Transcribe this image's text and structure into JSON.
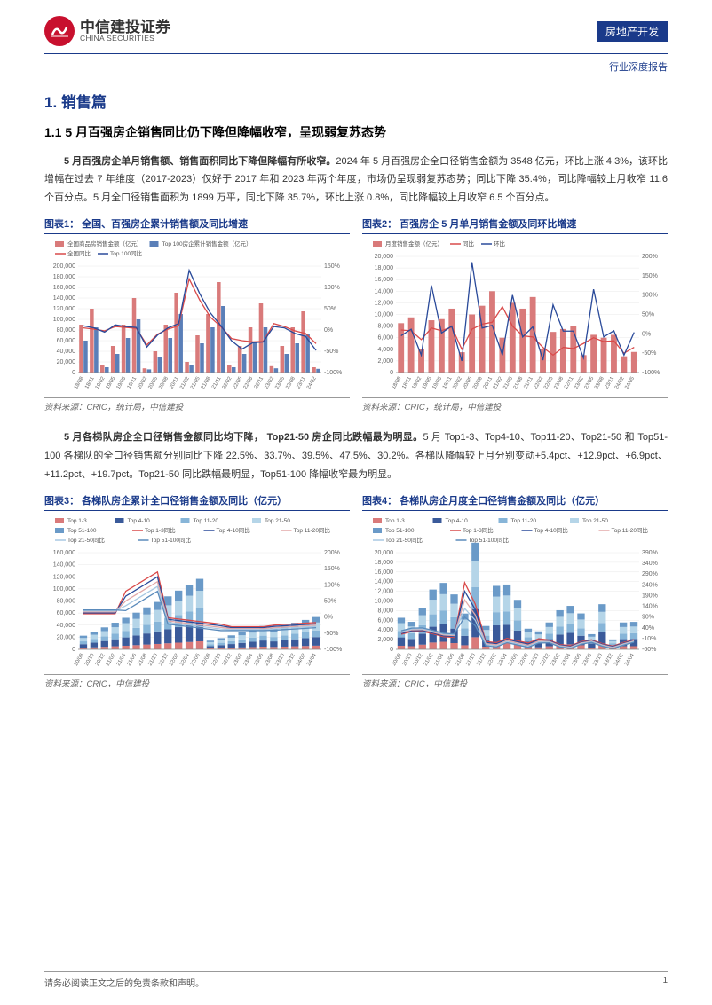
{
  "header": {
    "logo_cn": "中信建投证券",
    "logo_en": "CHINA SECURITIES",
    "tag": "房地产开发",
    "subheader": "行业深度报告"
  },
  "section1": {
    "title": "1. 销售篇",
    "subtitle": "1.1 5 月百强房企销售同比仍下降但降幅收窄，呈现弱复苏态势",
    "para1_bold": "5 月百强房企单月销售额、销售面积同比下降但降幅有所收窄。",
    "para1_rest": "2024 年 5 月百强房企全口径销售金额为 3548 亿元，环比上涨 4.3%，该环比增幅在过去 7 年维度（2017-2023）仅好于 2017 年和 2023 年两个年度，市场仍呈现弱复苏态势；同比下降 35.4%，同比降幅较上月收窄 11.6 个百分点。5 月全口径销售面积为 1899 万平，同比下降 35.7%，环比上涨 0.8%，同比降幅较上月收窄 6.5 个百分点。",
    "para2_bold": "5 月各梯队房企全口径销售金额同比均下降， Top21-50 房企同比跌幅最为明显。",
    "para2_rest": "5 月 Top1-3、Top4-10、Top11-20、Top21-50 和 Top51-100 各梯队的全口径销售额分别同比下降 22.5%、33.7%、39.5%、47.5%、30.2%。各梯队降幅较上月分别变动+5.4pct、+12.9pct、+6.9pct、+11.2pct、+19.7pct。Top21-50 同比跌幅最明显，Top51-100 降幅收窄最为明显。"
  },
  "chart1": {
    "title": "图表1：  全国、百强房企累计销售额及同比增速",
    "source": "资料来源：CRIC，统计局，中信建投",
    "legend": [
      {
        "label": "全国商品房销售金额（亿元）",
        "type": "bar",
        "color": "#d97a7a"
      },
      {
        "label": "Top 100房企累计销售金额（亿元）",
        "type": "bar",
        "color": "#5a7fb8"
      },
      {
        "label": "全国同比",
        "type": "line",
        "color": "#d94a4a"
      },
      {
        "label": "Top 100同比",
        "type": "line",
        "color": "#2a4a9a"
      }
    ],
    "yleft": {
      "min": 0,
      "max": 200000,
      "step": 20000,
      "label_suffix": ""
    },
    "yright": {
      "min": -100,
      "max": 150,
      "step": 50,
      "suffix": "%"
    },
    "xlabels": [
      "18/08",
      "18/11",
      "19/02",
      "19/05",
      "19/08",
      "19/11",
      "20/02",
      "20/05",
      "20/08",
      "20/11",
      "21/02",
      "21/05",
      "21/08",
      "21/11",
      "22/02",
      "22/05",
      "22/08",
      "22/11",
      "23/02",
      "23/05",
      "23/08",
      "23/11",
      "24/02"
    ],
    "bar_a": [
      90000,
      120000,
      15000,
      50000,
      90000,
      140000,
      8000,
      40000,
      90000,
      150000,
      20000,
      70000,
      110000,
      170000,
      15000,
      50000,
      85000,
      130000,
      12000,
      50000,
      85000,
      115000,
      10000
    ],
    "bar_b": [
      60000,
      85000,
      10000,
      35000,
      65000,
      100000,
      6000,
      30000,
      65000,
      110000,
      15000,
      55000,
      85000,
      125000,
      10000,
      35000,
      58000,
      85000,
      8000,
      35000,
      55000,
      72000,
      7000
    ],
    "line_a": [
      5,
      2,
      -2,
      8,
      6,
      4,
      -35,
      -10,
      2,
      10,
      120,
      70,
      30,
      8,
      -20,
      -25,
      -28,
      -27,
      15,
      8,
      -2,
      -8,
      -32
    ],
    "line_b": [
      10,
      5,
      -5,
      12,
      8,
      6,
      -40,
      -12,
      5,
      15,
      140,
      85,
      40,
      10,
      -25,
      -45,
      -30,
      -28,
      8,
      5,
      -8,
      -15,
      -48
    ]
  },
  "chart2": {
    "title": "图表2：  百强房企 5 月单月销售金额及同环比增速",
    "source": "资料来源：CRIC，统计局，中信建投",
    "legend": [
      {
        "label": "月度销售金额（亿元）",
        "type": "bar",
        "color": "#d97a7a"
      },
      {
        "label": "同比",
        "type": "line",
        "color": "#d94a4a"
      },
      {
        "label": "环比",
        "type": "line",
        "color": "#2a4a9a"
      }
    ],
    "yleft": {
      "min": 0,
      "max": 20000,
      "step": 2000
    },
    "yright": {
      "min": -100,
      "max": 200,
      "step": 50,
      "suffix": "%"
    },
    "xlabels": [
      "18/08",
      "18/11",
      "19/02",
      "19/05",
      "19/08",
      "19/11",
      "20/02",
      "20/05",
      "20/08",
      "20/11",
      "21/02",
      "21/05",
      "21/08",
      "21/11",
      "22/02",
      "22/05",
      "22/08",
      "22/11",
      "23/02",
      "23/05",
      "23/08",
      "23/11",
      "24/02",
      "24/05"
    ],
    "bar_a": [
      8500,
      9500,
      4000,
      9000,
      9200,
      11000,
      3500,
      10000,
      11500,
      14000,
      6000,
      12000,
      11000,
      13000,
      4000,
      7000,
      7500,
      8000,
      3000,
      6500,
      6000,
      6500,
      2800,
      3548
    ],
    "line_a": [
      10,
      8,
      -15,
      15,
      8,
      18,
      -40,
      12,
      25,
      30,
      70,
      20,
      -5,
      -8,
      -35,
      -55,
      -35,
      -38,
      -25,
      -10,
      -20,
      -18,
      -50,
      -35
    ],
    "line_b": [
      -5,
      12,
      -55,
      125,
      2,
      20,
      -70,
      185,
      15,
      22,
      -55,
      100,
      -8,
      18,
      -68,
      75,
      7,
      7,
      -62,
      115,
      -8,
      8,
      -55,
      4
    ]
  },
  "chart3": {
    "title": "图表3：  各梯队房企累计全口径销售金额及同比（亿元）",
    "source": "资料来源：CRIC，中信建投",
    "legend": [
      {
        "label": "Top 1-3",
        "type": "bar",
        "color": "#d97a7a"
      },
      {
        "label": "Top 4-10",
        "type": "bar",
        "color": "#3a5a9a"
      },
      {
        "label": "Top 11-20",
        "type": "bar",
        "color": "#87b5d8"
      },
      {
        "label": "Top 21-50",
        "type": "bar",
        "color": "#b5d5e8"
      },
      {
        "label": "Top 51-100",
        "type": "bar",
        "color": "#6a9ac8"
      },
      {
        "label": "Top 1-3同比",
        "type": "line",
        "color": "#d94a4a"
      },
      {
        "label": "Top 4-10同比",
        "type": "line",
        "color": "#2a4a9a"
      },
      {
        "label": "Top 11-20同比",
        "type": "line",
        "color": "#e2a8a8"
      },
      {
        "label": "Top 21-50同比",
        "type": "line",
        "color": "#a8c8e2"
      },
      {
        "label": "Top 51-100同比",
        "type": "line",
        "color": "#5a8abb"
      }
    ],
    "yleft": {
      "min": 0,
      "max": 160000,
      "step": 20000
    },
    "yright": {
      "min": -100,
      "max": 200,
      "step": 50,
      "suffix": "%"
    },
    "xlabels": [
      "20/08",
      "20/10",
      "20/12",
      "21/02",
      "21/04",
      "21/06",
      "21/08",
      "21/10",
      "21/12",
      "22/02",
      "22/04",
      "22/06",
      "22/08",
      "22/10",
      "22/12",
      "23/02",
      "23/04",
      "23/06",
      "23/08",
      "23/10",
      "23/12",
      "24/02",
      "24/04"
    ]
  },
  "chart4": {
    "title": "图表4：  各梯队房企月度全口径销售金额及同比（亿元）",
    "source": "资料来源：CRIC，中信建投",
    "legend": [
      {
        "label": "Top 1-3",
        "type": "bar",
        "color": "#d97a7a"
      },
      {
        "label": "Top 4-10",
        "type": "bar",
        "color": "#3a5a9a"
      },
      {
        "label": "Top 11-20",
        "type": "bar",
        "color": "#87b5d8"
      },
      {
        "label": "Top 21-50",
        "type": "bar",
        "color": "#b5d5e8"
      },
      {
        "label": "Top 51-100",
        "type": "bar",
        "color": "#6a9ac8"
      },
      {
        "label": "Top 1-3同比",
        "type": "line",
        "color": "#d94a4a"
      },
      {
        "label": "Top 4-10同比",
        "type": "line",
        "color": "#2a4a9a"
      },
      {
        "label": "Top 11-20同比",
        "type": "line",
        "color": "#e2a8a8"
      },
      {
        "label": "Top 21-50同比",
        "type": "line",
        "color": "#a8c8e2"
      },
      {
        "label": "Top 51-100同比",
        "type": "line",
        "color": "#5a8abb"
      }
    ],
    "yleft": {
      "min": 0,
      "max": 20000,
      "step": 2000
    },
    "yright": {
      "min": -60,
      "max": 390,
      "step": 50,
      "suffix": "%"
    },
    "xlabels": [
      "20/08",
      "20/10",
      "20/12",
      "21/02",
      "21/04",
      "21/06",
      "21/08",
      "21/10",
      "21/12",
      "22/02",
      "22/04",
      "22/06",
      "22/08",
      "22/10",
      "22/12",
      "23/02",
      "23/04",
      "23/06",
      "23/08",
      "23/10",
      "23/12",
      "24/02",
      "24/04"
    ]
  },
  "footer": {
    "disclaimer": "请务必阅读正文之后的免责条款和声明。",
    "page": "1"
  },
  "colors": {
    "brand_red": "#c8102e",
    "brand_blue": "#1a3a8a",
    "chart_red": "#d94a4a",
    "chart_blue": "#2a4a9a",
    "bar_pink": "#d97a7a",
    "bar_blue": "#5a7fb8",
    "grid": "#e8e8e8"
  }
}
